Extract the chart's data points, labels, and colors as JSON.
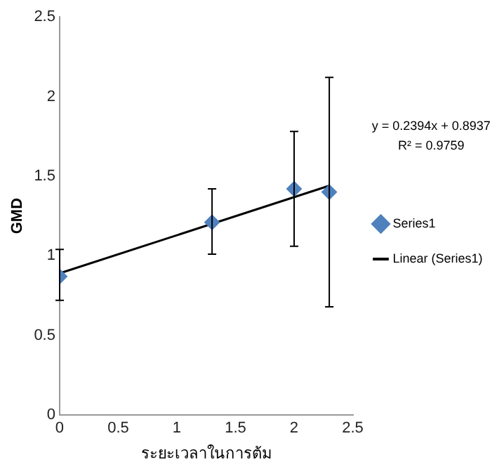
{
  "chart_data": {
    "type": "scatter",
    "xlabel": "ระยะเวลาในการต้ม",
    "ylabel": "GMD",
    "xlim": [
      0,
      2.5
    ],
    "xticks": [
      0,
      0.5,
      1,
      1.5,
      2,
      2.5
    ],
    "ylim": [
      0,
      2.5
    ],
    "yticks": [
      0,
      0.5,
      1,
      1.5,
      2,
      2.5
    ],
    "grid": false,
    "legend": "right",
    "marker": "diamond",
    "annotations": [
      "y = 0.2394x + 0.8937",
      "R² = 0.9759"
    ],
    "series": [
      {
        "name": "Series1",
        "color": "#4f81bd",
        "x": [
          0,
          1.3,
          2,
          2.3
        ],
        "values": [
          0.87,
          1.21,
          1.42,
          1.4
        ],
        "errors": [
          [
            0.72,
            1.04
          ],
          [
            1.01,
            1.42
          ],
          [
            1.06,
            1.78
          ],
          [
            0.68,
            2.12
          ]
        ]
      },
      {
        "name": "Linear (Series1)",
        "type": "line",
        "color": "#000000",
        "x": [
          0,
          2.3
        ],
        "values": [
          0.89,
          1.44
        ],
        "marker": "none",
        "line_style": "solid"
      }
    ]
  }
}
